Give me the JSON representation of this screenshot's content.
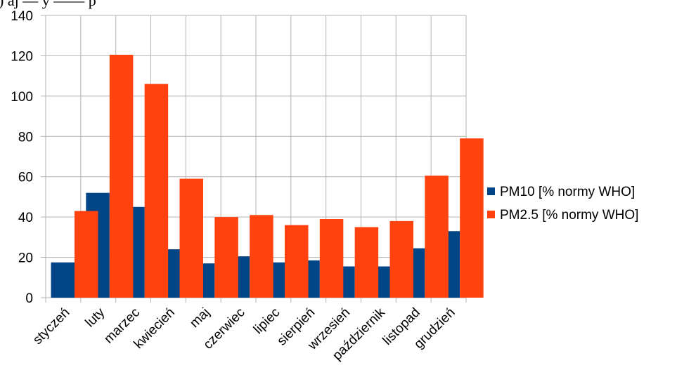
{
  "top_text": ") aj — y —— p",
  "chart_data": {
    "type": "bar",
    "title": "",
    "xlabel": "",
    "ylabel": "",
    "categories": [
      "styczeń",
      "luty",
      "marzec",
      "kwiecień",
      "maj",
      "czerwiec",
      "lipiec",
      "sierpień",
      "wrzesień",
      "październik",
      "listopad",
      "grudzień"
    ],
    "series": [
      {
        "name": "PM10 [% normy WHO]",
        "color": "#004586",
        "values": [
          17.5,
          52,
          45,
          24,
          17,
          20.5,
          17.5,
          18.5,
          15.5,
          15.5,
          24.5,
          33
        ]
      },
      {
        "name": "PM2.5 [% normy WHO]",
        "color": "#ff420e",
        "values": [
          43,
          120.5,
          106,
          59,
          40,
          41,
          36,
          39,
          35,
          38,
          60.5,
          79
        ]
      }
    ],
    "ylim": [
      0,
      140
    ],
    "yticks": [
      0,
      20,
      40,
      60,
      80,
      100,
      120,
      140
    ],
    "grid": true,
    "legend_position": "right"
  }
}
